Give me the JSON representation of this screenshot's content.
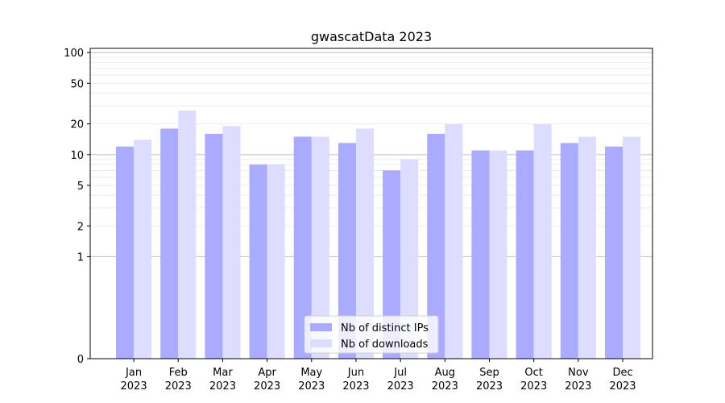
{
  "chart_data": {
    "type": "bar",
    "title": "gwascatData 2023",
    "xlabel": "",
    "ylabel": "",
    "y_scale": "symlog",
    "ylim": [
      0,
      110
    ],
    "yticks": [
      0,
      1,
      2,
      5,
      10,
      20,
      50,
      100
    ],
    "grid": true,
    "legend_position": "lower center",
    "categories": [
      "Jan\n2023",
      "Feb\n2023",
      "Mar\n2023",
      "Apr\n2023",
      "May\n2023",
      "Jun\n2023",
      "Jul\n2023",
      "Aug\n2023",
      "Sep\n2023",
      "Oct\n2023",
      "Nov\n2023",
      "Dec\n2023"
    ],
    "series": [
      {
        "name": "Nb of distinct IPs",
        "color": "#aaaaff",
        "values": [
          12,
          18,
          16,
          8,
          15,
          13,
          7,
          16,
          11,
          11,
          13,
          12
        ]
      },
      {
        "name": "Nb of downloads",
        "color": "#ddddff",
        "values": [
          14,
          27,
          19,
          8,
          15,
          18,
          9,
          20,
          11,
          20,
          15,
          15
        ]
      }
    ]
  }
}
